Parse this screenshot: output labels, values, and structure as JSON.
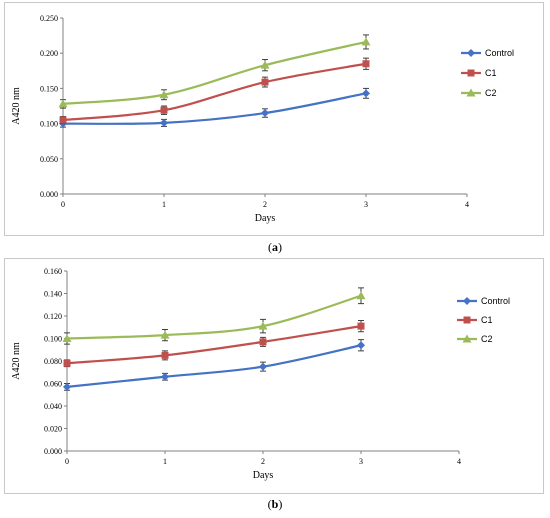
{
  "chart_data": [
    {
      "panel": "a",
      "type": "line",
      "ylabel": "A420 nm",
      "xlabel": "Days",
      "xlim": [
        0,
        4
      ],
      "ylim": [
        0,
        0.25
      ],
      "xticks": [
        "0",
        "1",
        "2",
        "3",
        "4"
      ],
      "yticks": [
        "0.000",
        "0.050",
        "0.100",
        "0.150",
        "0.200",
        "0.250"
      ],
      "legend_position": "right",
      "x": [
        0,
        1,
        2,
        3
      ],
      "series": [
        {
          "name": "Control",
          "color": "#4472c4",
          "marker": "diamond",
          "values": [
            0.1,
            0.101,
            0.115,
            0.143
          ],
          "errors": [
            0.005,
            0.005,
            0.006,
            0.007
          ]
        },
        {
          "name": "C1",
          "color": "#c0504d",
          "marker": "square",
          "values": [
            0.105,
            0.119,
            0.159,
            0.185
          ],
          "errors": [
            0.005,
            0.006,
            0.007,
            0.008
          ]
        },
        {
          "name": "C2",
          "color": "#9bbb59",
          "marker": "triangle",
          "values": [
            0.128,
            0.141,
            0.183,
            0.216
          ],
          "errors": [
            0.006,
            0.007,
            0.008,
            0.01
          ]
        }
      ]
    },
    {
      "panel": "b",
      "type": "line",
      "ylabel": "A420 nm",
      "xlabel": "Days",
      "xlim": [
        0,
        4
      ],
      "ylim": [
        0,
        0.16
      ],
      "xticks": [
        "0",
        "1",
        "2",
        "3",
        "4"
      ],
      "yticks": [
        "0.000",
        "0.020",
        "0.040",
        "0.060",
        "0.080",
        "0.100",
        "0.120",
        "0.140",
        "0.160"
      ],
      "legend_position": "right",
      "x": [
        0,
        1,
        2,
        3
      ],
      "series": [
        {
          "name": "Control",
          "color": "#4472c4",
          "marker": "diamond",
          "values": [
            0.057,
            0.066,
            0.075,
            0.094
          ],
          "errors": [
            0.003,
            0.003,
            0.004,
            0.005
          ]
        },
        {
          "name": "C1",
          "color": "#c0504d",
          "marker": "square",
          "values": [
            0.078,
            0.085,
            0.097,
            0.111
          ],
          "errors": [
            0.003,
            0.004,
            0.004,
            0.005
          ]
        },
        {
          "name": "C2",
          "color": "#9bbb59",
          "marker": "triangle",
          "values": [
            0.1,
            0.103,
            0.111,
            0.138
          ],
          "errors": [
            0.005,
            0.005,
            0.006,
            0.007
          ]
        }
      ]
    }
  ],
  "captions": {
    "a": "a",
    "b": "b"
  }
}
